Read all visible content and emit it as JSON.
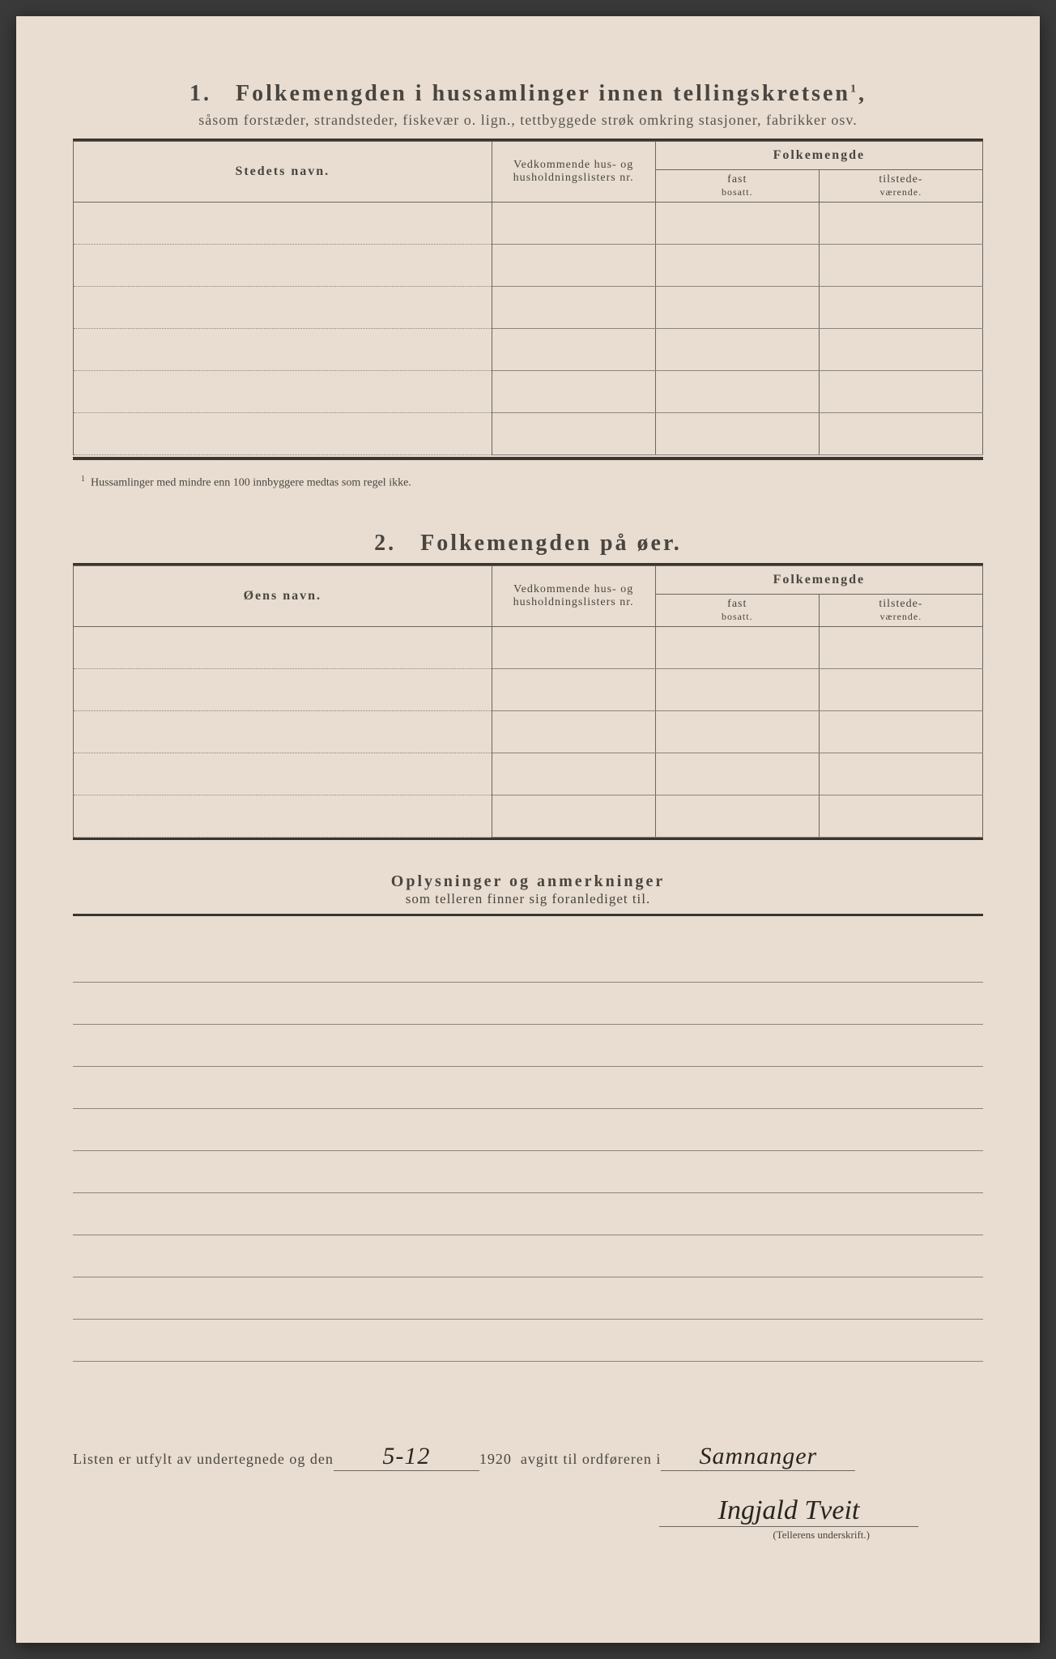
{
  "section1": {
    "number": "1.",
    "title": "Folkemengden i hussamlinger innen tellingskretsen",
    "title_sup": "1",
    "subtitle": "såsom forstæder, strandsteder, fiskevær o. lign., tettbyggede strøk omkring stasjoner, fabrikker osv.",
    "headers": {
      "name": "Stedets navn.",
      "reference": "Vedkommende hus- og husholdningslisters nr.",
      "population": "Folkemengde",
      "fast_label": "fast",
      "fast_sub": "bosatt.",
      "tilstede_label": "tilstede-",
      "tilstede_sub": "værende."
    },
    "row_count": 6,
    "footnote_marker": "1",
    "footnote": "Hussamlinger med mindre enn 100 innbyggere medtas som regel ikke."
  },
  "section2": {
    "number": "2.",
    "title": "Folkemengden på øer.",
    "headers": {
      "name": "Øens navn.",
      "reference": "Vedkommende hus- og husholdningslisters nr.",
      "population": "Folkemengde",
      "fast_label": "fast",
      "fast_sub": "bosatt.",
      "tilstede_label": "tilstede-",
      "tilstede_sub": "værende."
    },
    "row_count": 5
  },
  "remarks": {
    "title": "Oplysninger og anmerkninger",
    "subtitle": "som telleren finner sig foranlediget til.",
    "line_count": 10
  },
  "signature": {
    "prefix": "Listen er utfylt av undertegnede og den",
    "date_value": "5-12",
    "year": "1920",
    "mid_text": "avgitt til ordføreren i",
    "place_value": "Samnanger",
    "signature_value": "Ingjald Tveit",
    "caption": "(Tellerens underskrift.)"
  },
  "colors": {
    "paper": "#e8ddd0",
    "text": "#4a4540",
    "line": "#6a6560",
    "ink": "#2a2520"
  }
}
